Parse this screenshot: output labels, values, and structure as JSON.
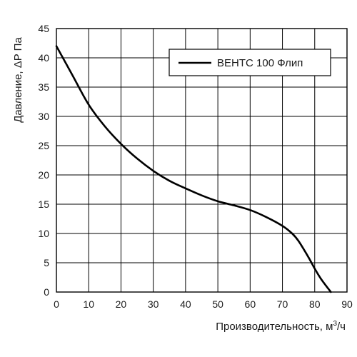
{
  "chart_data": {
    "type": "line",
    "xlabel": "Производительность, м",
    "xlabel_sup": "3",
    "xlabel_suffix": "/ч",
    "ylabel": "Давление, ΔP Па",
    "xlim": [
      0,
      90
    ],
    "ylim": [
      0,
      45
    ],
    "xticks": [
      0,
      10,
      20,
      30,
      40,
      50,
      60,
      70,
      80,
      90
    ],
    "yticks": [
      0,
      5,
      10,
      15,
      20,
      25,
      30,
      35,
      40,
      45
    ],
    "grid": true,
    "legend_position": "top-right",
    "series": [
      {
        "name": "ВЕНТС 100 Флип",
        "color": "#000000",
        "x": [
          0,
          5,
          10,
          15,
          20,
          25,
          30,
          35,
          40,
          45,
          50,
          55,
          60,
          65,
          70,
          73,
          75,
          78,
          80,
          82,
          85
        ],
        "y": [
          42,
          37,
          32,
          28.3,
          25.3,
          22.8,
          20.7,
          19,
          17.7,
          16.5,
          15.5,
          14.8,
          14,
          12.8,
          11.3,
          10,
          8.7,
          6,
          4,
          2.2,
          0
        ]
      }
    ]
  }
}
